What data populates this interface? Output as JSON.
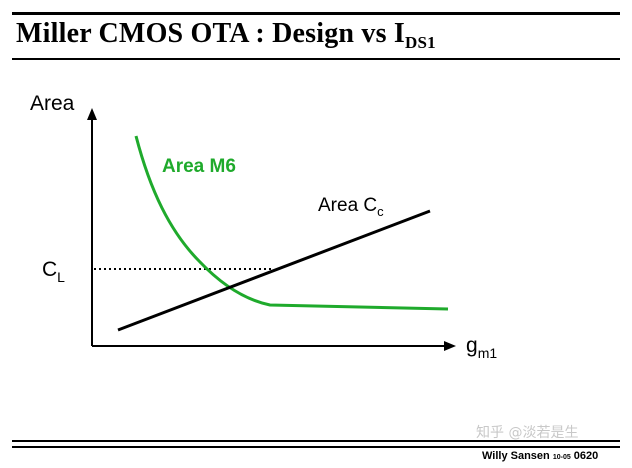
{
  "title": {
    "main": "Miller CMOS OTA : Design vs I",
    "sub": "DS1"
  },
  "axes": {
    "y_label": "Area",
    "x_label_main": "g",
    "x_label_sub": "m1",
    "level_label_main": "C",
    "level_label_sub": "L"
  },
  "curves": {
    "m6_label": "Area M6",
    "cc_label_main": "Area C",
    "cc_label_sub": "c"
  },
  "colors": {
    "m6_curve": "#1faa2c",
    "cc_line": "#000000",
    "axes": "#000000"
  },
  "watermark": "知乎 @淡若是生",
  "footer": {
    "author": "Willy Sansen",
    "code": "10-05",
    "page": "0620"
  }
}
